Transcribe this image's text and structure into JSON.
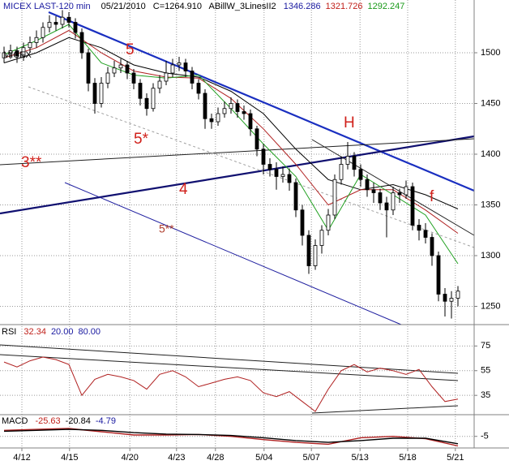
{
  "chart_data": {
    "type": "candlestick",
    "title": "MICEX LAST-120 min",
    "symbol": "MICEX",
    "date": "05/21/2010",
    "last": "C=1264.910",
    "study": "ABillW_3LinesII2",
    "study_values": [
      {
        "text": "1346.286",
        "color": "#1a1aa0"
      },
      {
        "text": "1321.726",
        "color": "#c0201a"
      },
      {
        "text": "1292.247",
        "color": "#1a9a1a"
      }
    ],
    "up_color": "#ffffff",
    "down_color": "#000000",
    "open": [
      1495,
      1500,
      1502,
      1497,
      1505,
      1510,
      1515,
      1525,
      1530,
      1528,
      1535,
      1530,
      1520,
      1500,
      1470,
      1450,
      1470,
      1480,
      1485,
      1488,
      1480,
      1470,
      1455,
      1445,
      1465,
      1472,
      1480,
      1488,
      1490,
      1482,
      1470,
      1460,
      1435,
      1432,
      1440,
      1445,
      1450,
      1442,
      1440,
      1425,
      1405,
      1390,
      1385,
      1378,
      1380,
      1372,
      1345,
      1320,
      1290,
      1310,
      1325,
      1340,
      1375,
      1390,
      1398,
      1385,
      1375,
      1365,
      1362,
      1352,
      1345,
      1362,
      1360,
      1368,
      1330,
      1325,
      1318,
      1300,
      1262,
      1255,
      1258
    ],
    "high": [
      1506,
      1508,
      1506,
      1510,
      1516,
      1522,
      1530,
      1537,
      1536,
      1542,
      1540,
      1534,
      1524,
      1504,
      1475,
      1476,
      1486,
      1492,
      1494,
      1492,
      1484,
      1474,
      1460,
      1470,
      1478,
      1492,
      1494,
      1496,
      1494,
      1486,
      1474,
      1464,
      1440,
      1446,
      1452,
      1456,
      1454,
      1448,
      1444,
      1428,
      1410,
      1396,
      1392,
      1388,
      1386,
      1376,
      1350,
      1325,
      1316,
      1330,
      1346,
      1380,
      1398,
      1412,
      1402,
      1390,
      1380,
      1372,
      1366,
      1358,
      1368,
      1366,
      1374,
      1372,
      1336,
      1332,
      1322,
      1304,
      1268,
      1265,
      1270
    ],
    "low": [
      1490,
      1494,
      1490,
      1492,
      1500,
      1505,
      1510,
      1520,
      1522,
      1524,
      1525,
      1514,
      1494,
      1462,
      1440,
      1446,
      1465,
      1476,
      1480,
      1474,
      1464,
      1448,
      1438,
      1442,
      1460,
      1468,
      1476,
      1482,
      1476,
      1464,
      1454,
      1425,
      1425,
      1428,
      1436,
      1440,
      1436,
      1434,
      1418,
      1398,
      1380,
      1378,
      1365,
      1372,
      1364,
      1338,
      1310,
      1282,
      1286,
      1302,
      1320,
      1336,
      1370,
      1385,
      1378,
      1368,
      1358,
      1352,
      1345,
      1318,
      1340,
      1352,
      1356,
      1325,
      1315,
      1312,
      1290,
      1255,
      1240,
      1238,
      1250
    ],
    "close": [
      1500,
      1502,
      1497,
      1505,
      1510,
      1515,
      1525,
      1530,
      1528,
      1535,
      1530,
      1520,
      1500,
      1470,
      1450,
      1470,
      1480,
      1485,
      1488,
      1480,
      1470,
      1455,
      1445,
      1465,
      1472,
      1480,
      1488,
      1490,
      1482,
      1470,
      1460,
      1435,
      1432,
      1440,
      1445,
      1450,
      1442,
      1440,
      1425,
      1405,
      1390,
      1385,
      1378,
      1380,
      1372,
      1345,
      1320,
      1290,
      1310,
      1325,
      1340,
      1375,
      1390,
      1398,
      1385,
      1375,
      1365,
      1362,
      1352,
      1345,
      1362,
      1360,
      1368,
      1330,
      1325,
      1318,
      1300,
      1262,
      1255,
      1258,
      1265
    ],
    "overlays": [
      {
        "color": "#000000",
        "x": [
          0,
          5,
          10,
          15,
          20,
          25,
          30,
          35,
          40,
          45,
          50,
          55,
          60,
          65,
          70
        ],
        "values": [
          1490,
          1500,
          1515,
          1505,
          1488,
          1480,
          1476,
          1462,
          1440,
          1405,
          1375,
          1365,
          1370,
          1360,
          1346
        ]
      },
      {
        "color": "#b02020",
        "x": [
          0,
          5,
          10,
          15,
          20,
          25,
          30,
          35,
          40,
          45,
          50,
          55,
          60,
          65,
          70
        ],
        "values": [
          1495,
          1505,
          1522,
          1500,
          1482,
          1476,
          1475,
          1455,
          1425,
          1390,
          1350,
          1365,
          1365,
          1345,
          1322
        ]
      },
      {
        "color": "#20a020",
        "x": [
          0,
          5,
          10,
          15,
          20,
          25,
          30,
          35,
          40,
          45,
          50,
          55,
          60,
          65,
          70
        ],
        "values": [
          1498,
          1512,
          1528,
          1490,
          1478,
          1475,
          1478,
          1445,
          1410,
          1378,
          1325,
          1380,
          1360,
          1340,
          1292
        ]
      }
    ],
    "xlim": [
      -0.625,
      72.5
    ],
    "xticks": [
      {
        "value": 2.75,
        "label": "4/12"
      },
      {
        "value": 10.1,
        "label": "4/15"
      },
      {
        "value": 19.4,
        "label": "4/20"
      },
      {
        "value": 26.6,
        "label": "4/23"
      },
      {
        "value": 32.6,
        "label": "4/28"
      },
      {
        "value": 40.1,
        "label": "5/04"
      },
      {
        "value": 47.4,
        "label": "5/07"
      },
      {
        "value": 54.9,
        "label": "5/13"
      },
      {
        "value": 62.25,
        "label": "5/18"
      },
      {
        "value": 69.6,
        "label": "5/21"
      }
    ],
    "ylim": [
      1232,
      1552
    ],
    "yticks": [
      1500,
      1450,
      1400,
      1350,
      1300,
      1250
    ],
    "grid": true,
    "annotations": [
      "5",
      "5*",
      "3**",
      "4",
      "H",
      "f",
      "5**"
    ],
    "rsi": {
      "title": "RSI",
      "header_values": [
        {
          "text": "32.34",
          "color": "#c0201a"
        },
        {
          "text": "20.00",
          "color": "#1a1aa0"
        },
        {
          "text": "80.00",
          "color": "#1a1aa0"
        }
      ],
      "color": "#b02020",
      "x": [
        0,
        2,
        4,
        6,
        8,
        10,
        12,
        14,
        16,
        18,
        20,
        22,
        24,
        26,
        28,
        30,
        32,
        34,
        36,
        38,
        40,
        42,
        44,
        46,
        48,
        50,
        52,
        54,
        56,
        58,
        60,
        62,
        64,
        66,
        68,
        70
      ],
      "values": [
        62,
        58,
        63,
        66,
        64,
        60,
        35,
        48,
        52,
        50,
        47,
        40,
        52,
        55,
        50,
        42,
        45,
        48,
        50,
        47,
        37,
        34,
        38,
        30,
        22,
        40,
        55,
        60,
        54,
        57,
        55,
        52,
        56,
        42,
        30,
        32
      ],
      "ylim": [
        20,
        91
      ],
      "yticks": [
        75,
        55,
        35
      ]
    },
    "macd": {
      "title": "MACD",
      "header_values": [
        {
          "text": "-25.63",
          "color": "#c0201a"
        },
        {
          "text": "-20.84",
          "color": "#000000"
        },
        {
          "text": "-4.79",
          "color": "#1a1aa0"
        }
      ],
      "x": [
        0,
        5,
        10,
        15,
        20,
        25,
        30,
        35,
        40,
        45,
        50,
        55,
        60,
        65,
        70
      ],
      "series": [
        {
          "color": "#b02020",
          "values": [
            8,
            10,
            12,
            5,
            -2,
            -2,
            -1,
            -5,
            -12,
            -18,
            -22,
            -8,
            -5,
            -10,
            -25.63
          ]
        },
        {
          "color": "#000000",
          "values": [
            6,
            8,
            10,
            8,
            3,
            0,
            -1,
            -3,
            -8,
            -14,
            -18,
            -14,
            -9,
            -9,
            -20.84
          ]
        }
      ],
      "ylim": [
        -30,
        40
      ],
      "yticks": [
        -5
      ]
    }
  }
}
